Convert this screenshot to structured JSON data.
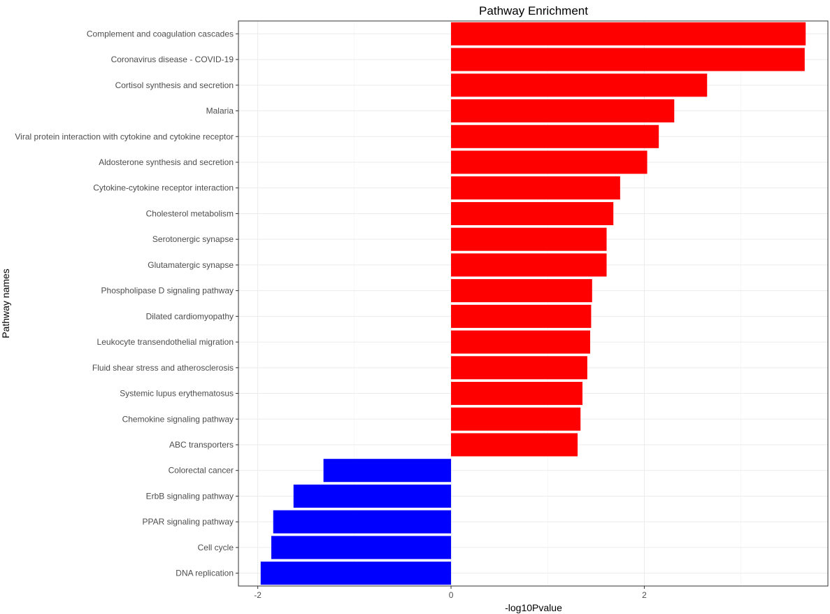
{
  "chart_data": {
    "type": "bar",
    "orientation": "horizontal",
    "title": "Pathway Enrichment",
    "xlabel": "-log10Pvalue",
    "ylabel": "Pathway names",
    "xlim": [
      -2.2,
      3.9
    ],
    "x_ticks": [
      -2,
      0,
      2
    ],
    "x_tick_labels": [
      "-2",
      "0",
      "2"
    ],
    "grid": true,
    "legend": "none",
    "colors": {
      "positive": "#ff0000",
      "negative": "#0000ff"
    },
    "categories": [
      "Complement and coagulation cascades",
      "Coronavirus disease - COVID-19",
      "Cortisol synthesis and secretion",
      "Malaria",
      "Viral protein interaction with cytokine and cytokine receptor",
      "Aldosterone synthesis and secretion",
      "Cytokine-cytokine receptor interaction",
      "Cholesterol metabolism",
      "Serotonergic synapse",
      "Glutamatergic synapse",
      "Phospholipase D signaling pathway",
      "Dilated cardiomyopathy",
      "Leukocyte transendothelial migration",
      "Fluid shear stress and atherosclerosis",
      "Systemic lupus erythematosus",
      "Chemokine signaling pathway",
      "ABC transporters",
      "Colorectal cancer",
      "ErbB signaling pathway",
      "PPAR signaling pathway",
      "Cell cycle",
      "DNA replication"
    ],
    "values": [
      3.67,
      3.66,
      2.65,
      2.31,
      2.15,
      2.03,
      1.75,
      1.68,
      1.61,
      1.61,
      1.46,
      1.45,
      1.44,
      1.41,
      1.36,
      1.34,
      1.31,
      -1.32,
      -1.63,
      -1.84,
      -1.86,
      -1.97
    ]
  }
}
